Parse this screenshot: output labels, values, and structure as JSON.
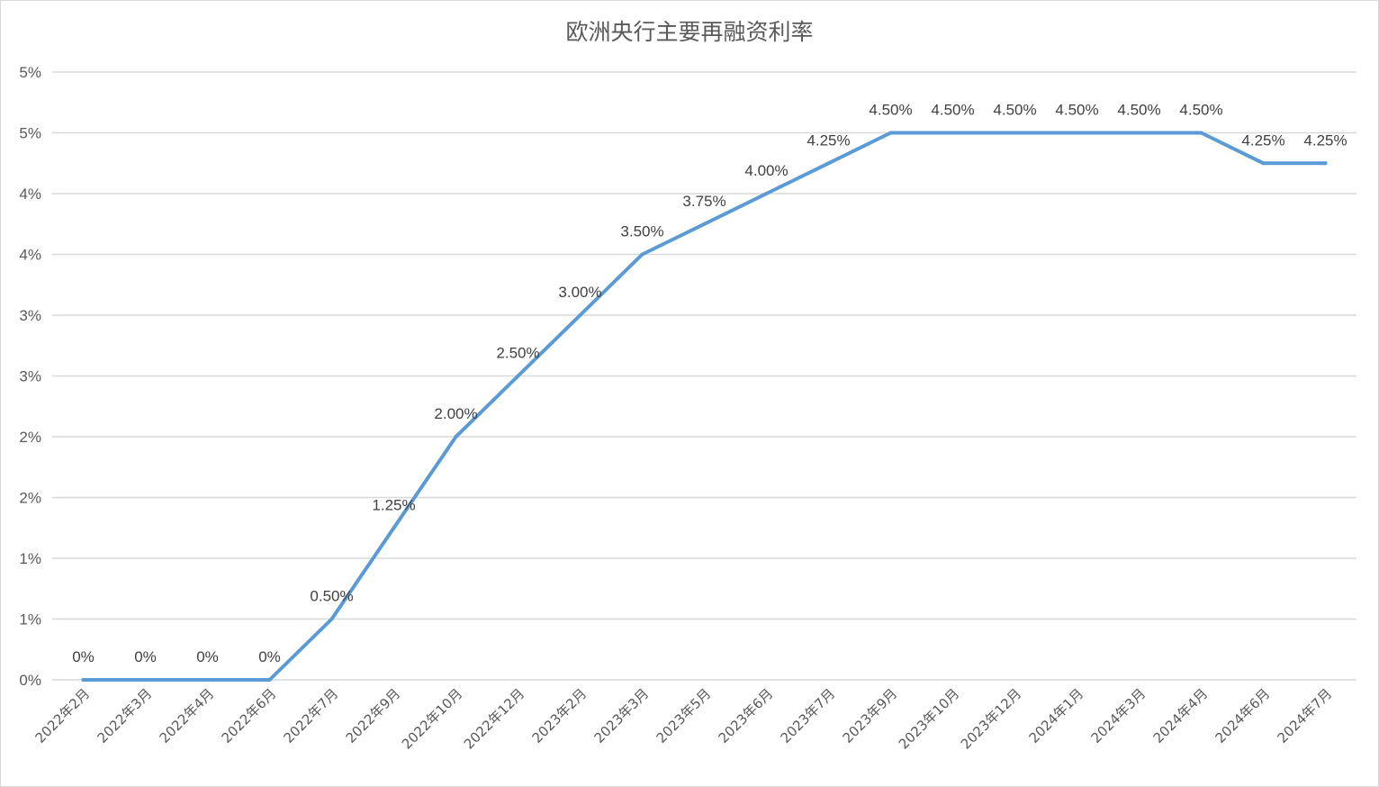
{
  "chart_data": {
    "type": "line",
    "title": "欧洲央行主要再融资利率",
    "xlabel": "",
    "ylabel": "",
    "ylim": [
      0,
      5
    ],
    "y_tick_values": [
      0,
      0.5,
      1,
      1.5,
      2,
      2.5,
      3,
      3.5,
      4,
      4.5,
      5
    ],
    "y_tick_labels": [
      "0%",
      "1%",
      "1%",
      "2%",
      "2%",
      "3%",
      "3%",
      "4%",
      "4%",
      "5%",
      "5%"
    ],
    "grid": true,
    "legend": "none",
    "series_color": "#5b9bd5",
    "categories": [
      "2022年2月",
      "2022年3月",
      "2022年4月",
      "2022年6月",
      "2022年7月",
      "2022年9月",
      "2022年10月",
      "2022年12月",
      "2023年2月",
      "2023年3月",
      "2023年5月",
      "2023年6月",
      "2023年7月",
      "2023年9月",
      "2023年10月",
      "2023年12月",
      "2024年1月",
      "2024年3月",
      "2024年4月",
      "2024年6月",
      "2024年7月"
    ],
    "series": [
      {
        "values": [
          0,
          0,
          0,
          0,
          0.5,
          1.25,
          2.0,
          2.5,
          3.0,
          3.5,
          3.75,
          4.0,
          4.25,
          4.5,
          4.5,
          4.5,
          4.5,
          4.5,
          4.5,
          4.25,
          4.25
        ],
        "data_labels": [
          "0%",
          "0%",
          "0%",
          "0%",
          "0.50%",
          "1.25%",
          "2.00%",
          "2.50%",
          "3.00%",
          "3.50%",
          "3.75%",
          "4.00%",
          "4.25%",
          "4.50%",
          "4.50%",
          "4.50%",
          "4.50%",
          "4.50%",
          "4.50%",
          "4.25%",
          "4.25%"
        ]
      }
    ]
  }
}
